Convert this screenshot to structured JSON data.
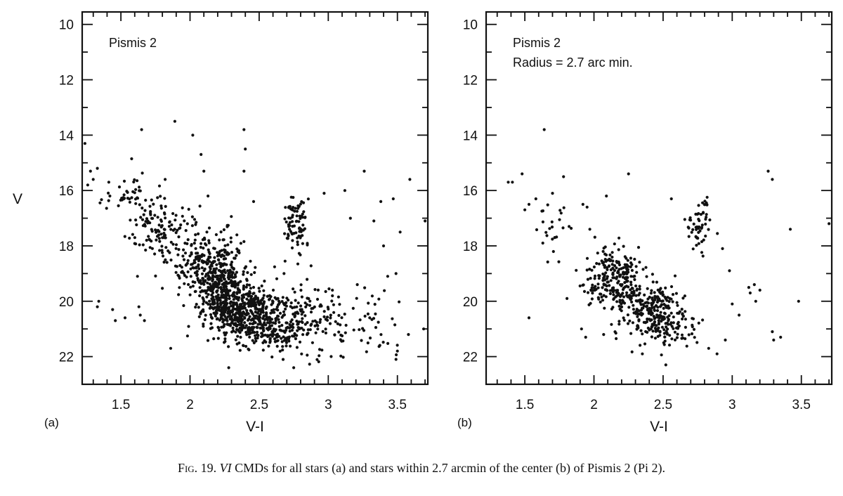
{
  "caption": {
    "label": "Fig. 19.",
    "italic": "VI",
    "text": " CMDs for all stars (a) and stars within 2.7 arcmin of the center (b) of Pismis 2 (Pi 2)."
  },
  "chart_data": [
    {
      "type": "scatter",
      "panel_label": "(a)",
      "annotation_lines": [
        "Pismis 2"
      ],
      "xlabel": "V-I",
      "ylabel": "V",
      "xlim": [
        1.22,
        3.72
      ],
      "ylim": [
        23.0,
        9.55
      ],
      "y_inverted": true,
      "xticks": [
        1.5,
        2,
        2.5,
        3,
        3.5
      ],
      "yticks": [
        10,
        12,
        14,
        16,
        18,
        20,
        22
      ],
      "grid": false,
      "legend": "none",
      "marker_color": "#111111",
      "clumps": [
        {
          "cx": 2.22,
          "cy": 19.3,
          "sx": 0.09,
          "sy": 0.75,
          "n": 380
        },
        {
          "cx": 2.4,
          "cy": 20.4,
          "sx": 0.14,
          "sy": 0.55,
          "n": 420
        },
        {
          "cx": 2.6,
          "cy": 20.9,
          "sx": 0.13,
          "sy": 0.45,
          "n": 170
        },
        {
          "cx": 2.05,
          "cy": 18.6,
          "sx": 0.11,
          "sy": 0.55,
          "n": 120
        },
        {
          "cx": 1.78,
          "cy": 17.4,
          "sx": 0.12,
          "sy": 0.55,
          "n": 110
        },
        {
          "cx": 1.55,
          "cy": 16.3,
          "sx": 0.1,
          "sy": 0.45,
          "n": 45
        },
        {
          "cx": 2.76,
          "cy": 17.5,
          "sx": 0.05,
          "sy": 0.45,
          "n": 60
        },
        {
          "cx": 2.78,
          "cy": 16.6,
          "sx": 0.04,
          "sy": 0.25,
          "n": 20
        },
        {
          "cx": 2.9,
          "cy": 20.6,
          "sx": 0.2,
          "sy": 0.7,
          "n": 130
        },
        {
          "cx": 3.25,
          "cy": 20.9,
          "sx": 0.2,
          "sy": 0.8,
          "n": 40
        }
      ],
      "points": [
        [
          1.24,
          14.3
        ],
        [
          1.28,
          15.3
        ],
        [
          1.3,
          15.6
        ],
        [
          1.33,
          15.2
        ],
        [
          1.26,
          15.8
        ],
        [
          1.65,
          13.8
        ],
        [
          1.89,
          13.5
        ],
        [
          2.02,
          14.0
        ],
        [
          2.08,
          14.7
        ],
        [
          2.39,
          13.8
        ],
        [
          2.4,
          14.5
        ],
        [
          2.1,
          15.3
        ],
        [
          2.39,
          15.3
        ],
        [
          1.82,
          15.6
        ],
        [
          2.46,
          16.4
        ],
        [
          2.13,
          16.2
        ],
        [
          2.97,
          16.1
        ],
        [
          3.12,
          16.0
        ],
        [
          3.26,
          15.3
        ],
        [
          3.47,
          16.3
        ],
        [
          3.59,
          15.6
        ],
        [
          3.7,
          17.1
        ],
        [
          3.52,
          17.5
        ],
        [
          3.38,
          16.4
        ],
        [
          3.33,
          17.1
        ],
        [
          3.16,
          17.0
        ],
        [
          3.4,
          18.0
        ],
        [
          1.44,
          20.3
        ],
        [
          1.46,
          20.7
        ],
        [
          1.33,
          20.2
        ],
        [
          1.34,
          20.0
        ],
        [
          1.53,
          20.6
        ],
        [
          1.64,
          20.5
        ],
        [
          1.67,
          20.7
        ],
        [
          1.63,
          20.2
        ],
        [
          1.86,
          21.7
        ],
        [
          2.28,
          22.4
        ],
        [
          2.75,
          22.4
        ],
        [
          3.49,
          22.1
        ],
        [
          3.5,
          21.8
        ],
        [
          3.58,
          21.2
        ],
        [
          3.69,
          21.0
        ],
        [
          3.3,
          20.6
        ],
        [
          3.43,
          19.1
        ],
        [
          3.49,
          19.0
        ],
        [
          3.21,
          19.4
        ],
        [
          3.03,
          19.6
        ],
        [
          2.68,
          19.0
        ],
        [
          1.62,
          19.1
        ],
        [
          1.42,
          16.2
        ]
      ]
    },
    {
      "type": "scatter",
      "panel_label": "(b)",
      "annotation_lines": [
        "Pismis 2",
        "Radius = 2.7 arc min."
      ],
      "xlabel": "V-I",
      "ylabel": "",
      "xlim": [
        1.22,
        3.72
      ],
      "ylim": [
        23.0,
        9.55
      ],
      "y_inverted": true,
      "xticks": [
        1.5,
        2,
        2.5,
        3,
        3.5
      ],
      "yticks": [
        10,
        12,
        14,
        16,
        18,
        20,
        22
      ],
      "grid": false,
      "legend": "none",
      "marker_color": "#111111",
      "clumps": [
        {
          "cx": 2.18,
          "cy": 19.1,
          "sx": 0.08,
          "sy": 0.55,
          "n": 190
        },
        {
          "cx": 2.4,
          "cy": 20.3,
          "sx": 0.12,
          "sy": 0.55,
          "n": 230
        },
        {
          "cx": 2.55,
          "cy": 21.0,
          "sx": 0.11,
          "sy": 0.4,
          "n": 70
        },
        {
          "cx": 2.02,
          "cy": 19.2,
          "sx": 0.07,
          "sy": 0.6,
          "n": 40
        },
        {
          "cx": 2.75,
          "cy": 17.5,
          "sx": 0.05,
          "sy": 0.4,
          "n": 45
        },
        {
          "cx": 2.8,
          "cy": 16.6,
          "sx": 0.03,
          "sy": 0.2,
          "n": 12
        },
        {
          "cx": 1.72,
          "cy": 17.3,
          "sx": 0.07,
          "sy": 0.5,
          "n": 22
        }
      ],
      "points": [
        [
          1.38,
          15.7
        ],
        [
          1.41,
          15.7
        ],
        [
          1.48,
          15.4
        ],
        [
          1.5,
          16.7
        ],
        [
          1.53,
          16.5
        ],
        [
          1.58,
          16.3
        ],
        [
          1.64,
          13.8
        ],
        [
          1.7,
          16.1
        ],
        [
          1.78,
          15.5
        ],
        [
          1.63,
          17.9
        ],
        [
          1.82,
          17.3
        ],
        [
          1.92,
          16.5
        ],
        [
          1.95,
          16.6
        ],
        [
          1.97,
          17.4
        ],
        [
          2.09,
          16.2
        ],
        [
          2.25,
          15.4
        ],
        [
          2.56,
          16.3
        ],
        [
          2.93,
          18.1
        ],
        [
          2.98,
          18.9
        ],
        [
          3.0,
          20.1
        ],
        [
          3.05,
          20.5
        ],
        [
          3.12,
          19.5
        ],
        [
          3.13,
          19.7
        ],
        [
          3.16,
          19.4
        ],
        [
          3.2,
          19.6
        ],
        [
          3.17,
          20.0
        ],
        [
          3.26,
          15.3
        ],
        [
          3.29,
          15.6
        ],
        [
          3.42,
          17.4
        ],
        [
          3.7,
          17.2
        ],
        [
          3.29,
          21.1
        ],
        [
          3.3,
          21.4
        ],
        [
          3.35,
          21.3
        ],
        [
          3.48,
          20.0
        ],
        [
          2.83,
          21.7
        ],
        [
          2.89,
          21.9
        ],
        [
          2.95,
          21.4
        ],
        [
          2.52,
          22.3
        ],
        [
          2.35,
          21.9
        ],
        [
          1.91,
          21.0
        ],
        [
          1.94,
          21.3
        ],
        [
          2.07,
          21.2
        ],
        [
          1.53,
          20.6
        ]
      ]
    }
  ]
}
